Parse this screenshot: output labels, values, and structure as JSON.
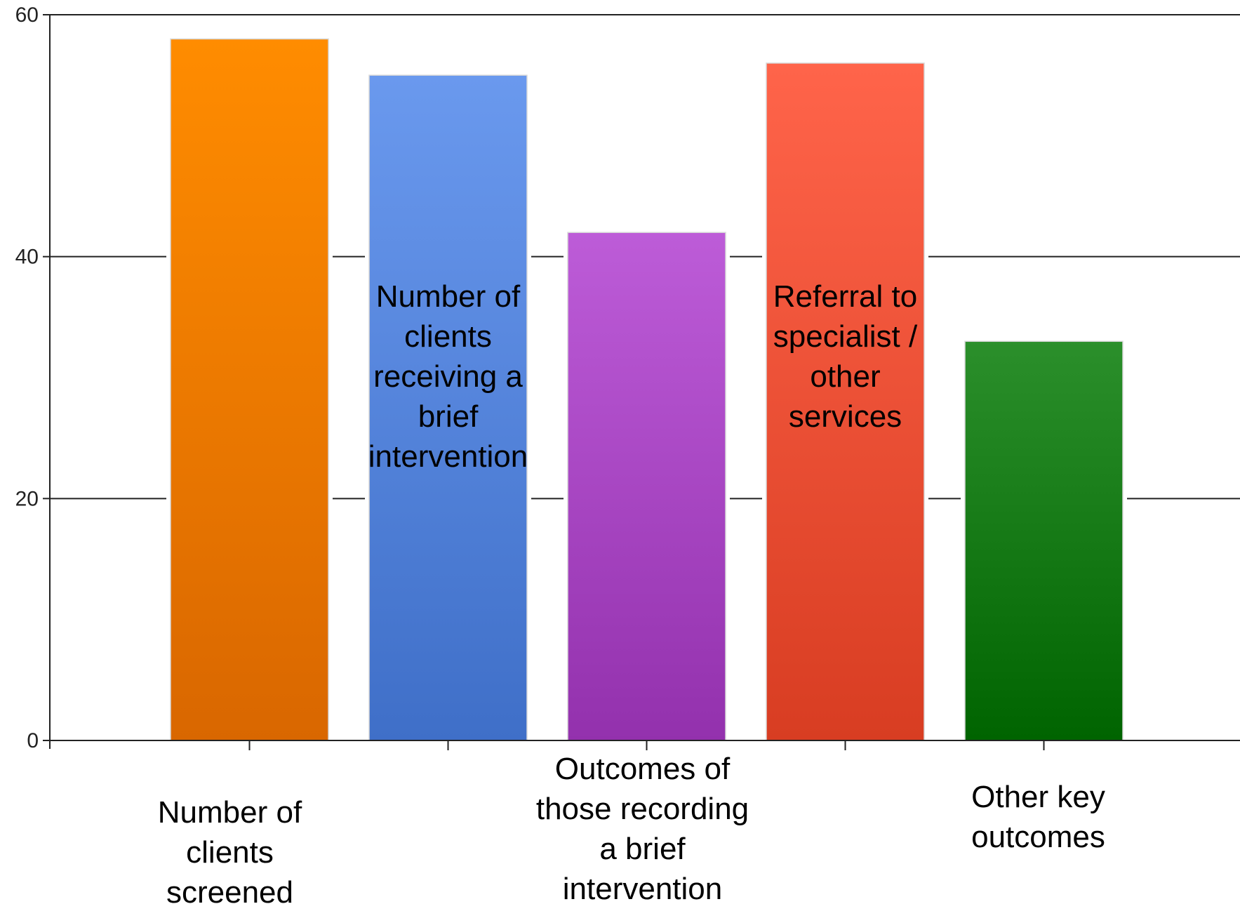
{
  "chart_data": {
    "type": "bar",
    "title": "",
    "xlabel": "",
    "ylabel": "",
    "ylim": [
      0,
      60
    ],
    "yticks": [
      "0",
      "20",
      "40",
      "60"
    ],
    "grid": true,
    "categories": [
      "Number of clients screened",
      "Number of clients receiving a brief intervention",
      "Outcomes of those recording a brief intervention",
      "Referral to specialist / other services",
      "Other key outcomes"
    ],
    "category_label_lines": [
      [
        "Number of",
        "clients",
        "screened"
      ],
      [
        "Number of",
        "clients",
        "receiving a",
        "brief",
        "intervention"
      ],
      [
        "Outcomes of",
        "those recording",
        "a brief",
        "intervention"
      ],
      [
        "Referral to",
        "specialist /",
        "other",
        "services"
      ],
      [
        "Other key",
        "outcomes"
      ]
    ],
    "values": [
      58,
      55,
      42,
      56,
      33
    ],
    "colors": [
      [
        "#ff8c00",
        "#d96700"
      ],
      [
        "#6a99ee",
        "#3f6fc8"
      ],
      [
        "#bd5cd8",
        "#9331ad"
      ],
      [
        "#ff644a",
        "#d83d22"
      ],
      [
        "#2b8f2b",
        "#006400"
      ]
    ]
  }
}
